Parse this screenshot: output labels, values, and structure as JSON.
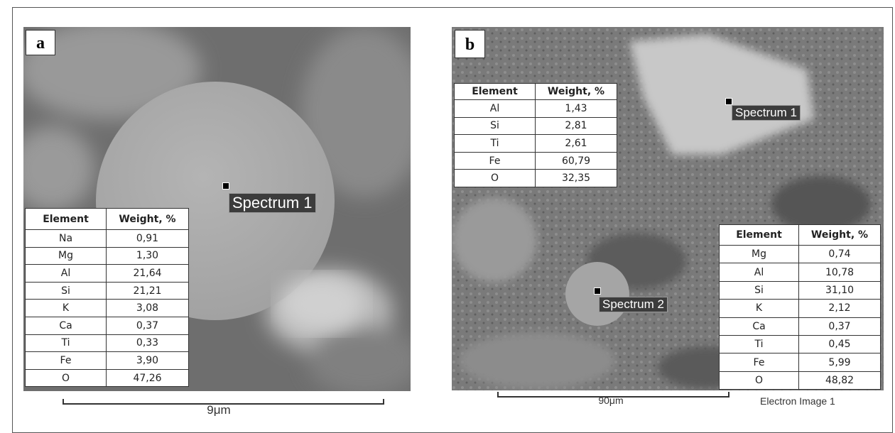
{
  "panels": [
    {
      "label": "a",
      "spectra": [
        "Spectrum 1"
      ],
      "tables": [
        {
          "header": [
            "Element",
            "Weight, %"
          ],
          "rows": [
            [
              "Na",
              "0,91"
            ],
            [
              "Mg",
              "1,30"
            ],
            [
              "Al",
              "21,64"
            ],
            [
              "Si",
              "21,21"
            ],
            [
              "K",
              "3,08"
            ],
            [
              "Ca",
              "0,37"
            ],
            [
              "Ti",
              "0,33"
            ],
            [
              "Fe",
              "3,90"
            ],
            [
              "O",
              "47,26"
            ]
          ]
        }
      ],
      "scale_bar": "9μm"
    },
    {
      "label": "b",
      "spectra": [
        "Spectrum 1",
        "Spectrum 2"
      ],
      "tables": [
        {
          "header": [
            "Element",
            "Weight, %"
          ],
          "rows": [
            [
              "Al",
              "1,43"
            ],
            [
              "Si",
              "2,81"
            ],
            [
              "Ti",
              "2,61"
            ],
            [
              "Fe",
              "60,79"
            ],
            [
              "O",
              "32,35"
            ]
          ]
        },
        {
          "header": [
            "Element",
            "Weight, %"
          ],
          "rows": [
            [
              "Mg",
              "0,74"
            ],
            [
              "Al",
              "10,78"
            ],
            [
              "Si",
              "31,10"
            ],
            [
              "K",
              "2,12"
            ],
            [
              "Ca",
              "0,37"
            ],
            [
              "Ti",
              "0,45"
            ],
            [
              "Fe",
              "5,99"
            ],
            [
              "O",
              "48,82"
            ]
          ]
        }
      ],
      "scale_bar": "90μm",
      "caption": "Electron Image 1"
    }
  ]
}
